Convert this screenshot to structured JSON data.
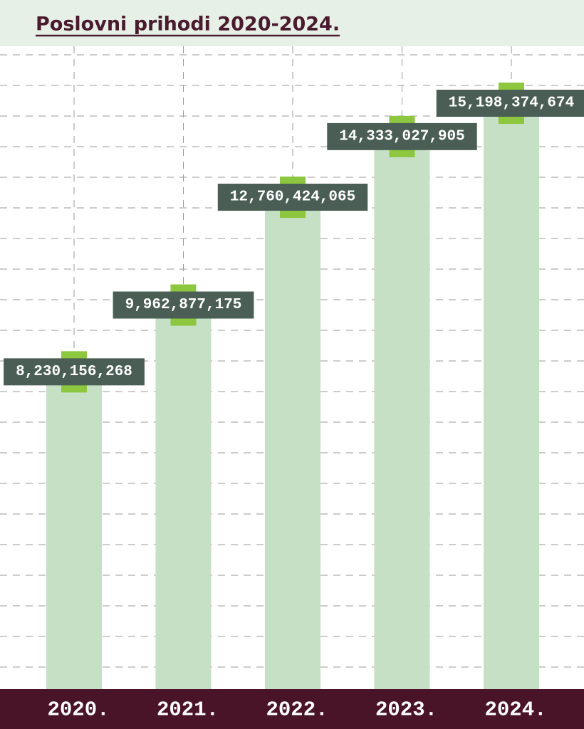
{
  "chart_data": {
    "type": "bar",
    "title": "Poslovni prihodi 2020-2024.",
    "categories": [
      "2020.",
      "2021.",
      "2022.",
      "2023.",
      "2024."
    ],
    "values": [
      8230156268,
      9962877175,
      12760424065,
      14333027905,
      15198374674
    ],
    "value_labels": [
      "8,230,156,268",
      "9,962,877,175",
      "12,760,424,065",
      "14,333,027,905",
      "15,198,374,674"
    ],
    "color": "#c5e0c5",
    "grid": true
  }
}
